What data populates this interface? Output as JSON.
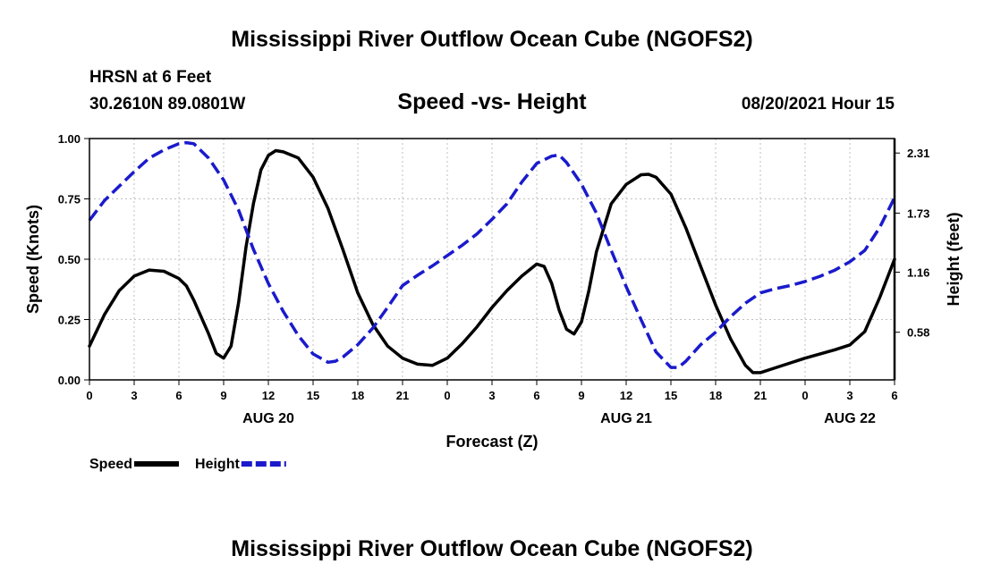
{
  "header": {
    "title": "Mississippi River Outflow Ocean Cube (NGOFS2)",
    "station": "HRSN at 6 Feet",
    "coords": "30.2610N  89.0801W",
    "subtitle": "Speed -vs- Height",
    "datetime": "08/20/2021 Hour 15"
  },
  "footer": {
    "title": "Mississippi River Outflow Ocean Cube (NGOFS2)"
  },
  "chart_data": {
    "type": "line",
    "title": "Speed -vs- Height",
    "xlabel": "Forecast (Z)",
    "ylabel": "Speed (Knots)",
    "y2label": "Height (feet)",
    "x_range_hours": [
      0,
      54
    ],
    "ylim": [
      0,
      1.0
    ],
    "y2lim": [
      0.12,
      2.45
    ],
    "x_ticks": [
      {
        "h": 0,
        "label": "0"
      },
      {
        "h": 3,
        "label": "3"
      },
      {
        "h": 6,
        "label": "6"
      },
      {
        "h": 9,
        "label": "9"
      },
      {
        "h": 12,
        "label": "12"
      },
      {
        "h": 15,
        "label": "15"
      },
      {
        "h": 18,
        "label": "18"
      },
      {
        "h": 21,
        "label": "21"
      },
      {
        "h": 24,
        "label": "0"
      },
      {
        "h": 27,
        "label": "3"
      },
      {
        "h": 30,
        "label": "6"
      },
      {
        "h": 33,
        "label": "9"
      },
      {
        "h": 36,
        "label": "12"
      },
      {
        "h": 39,
        "label": "15"
      },
      {
        "h": 42,
        "label": "18"
      },
      {
        "h": 45,
        "label": "21"
      },
      {
        "h": 48,
        "label": "0"
      },
      {
        "h": 51,
        "label": "3"
      },
      {
        "h": 54,
        "label": "6"
      }
    ],
    "day_labels": [
      {
        "h": 12,
        "label": "AUG 20"
      },
      {
        "h": 36,
        "label": "AUG 21"
      },
      {
        "h": 51,
        "label": "AUG 22"
      }
    ],
    "y_ticks": [
      {
        "v": 0.0,
        "label": "0.00"
      },
      {
        "v": 0.25,
        "label": "0.25"
      },
      {
        "v": 0.5,
        "label": "0.50"
      },
      {
        "v": 0.75,
        "label": "0.75"
      },
      {
        "v": 1.0,
        "label": "1.00"
      }
    ],
    "y2_ticks": [
      {
        "v": 0.58,
        "label": "0.58"
      },
      {
        "v": 1.16,
        "label": "1.16"
      },
      {
        "v": 1.73,
        "label": "1.73"
      },
      {
        "v": 2.31,
        "label": "2.31"
      }
    ],
    "series": [
      {
        "name": "Speed",
        "axis": "left",
        "color": "#000000",
        "dash": "none",
        "points": [
          [
            0,
            0.14
          ],
          [
            1,
            0.27
          ],
          [
            2,
            0.37
          ],
          [
            3,
            0.43
          ],
          [
            4,
            0.455
          ],
          [
            5,
            0.45
          ],
          [
            6,
            0.42
          ],
          [
            6.5,
            0.39
          ],
          [
            7,
            0.33
          ],
          [
            8,
            0.19
          ],
          [
            8.5,
            0.11
          ],
          [
            9,
            0.09
          ],
          [
            9.5,
            0.14
          ],
          [
            10,
            0.32
          ],
          [
            10.5,
            0.55
          ],
          [
            11,
            0.73
          ],
          [
            11.5,
            0.87
          ],
          [
            12,
            0.93
          ],
          [
            12.5,
            0.95
          ],
          [
            13,
            0.945
          ],
          [
            14,
            0.92
          ],
          [
            15,
            0.84
          ],
          [
            16,
            0.71
          ],
          [
            17,
            0.54
          ],
          [
            18,
            0.36
          ],
          [
            19,
            0.23
          ],
          [
            20,
            0.14
          ],
          [
            21,
            0.09
          ],
          [
            22,
            0.065
          ],
          [
            23,
            0.06
          ],
          [
            24,
            0.09
          ],
          [
            25,
            0.15
          ],
          [
            26,
            0.22
          ],
          [
            27,
            0.3
          ],
          [
            28,
            0.37
          ],
          [
            29,
            0.43
          ],
          [
            30,
            0.48
          ],
          [
            30.5,
            0.47
          ],
          [
            31,
            0.4
          ],
          [
            31.5,
            0.29
          ],
          [
            32,
            0.21
          ],
          [
            32.5,
            0.19
          ],
          [
            33,
            0.24
          ],
          [
            33.5,
            0.37
          ],
          [
            34,
            0.53
          ],
          [
            35,
            0.73
          ],
          [
            36,
            0.81
          ],
          [
            37,
            0.85
          ],
          [
            37.5,
            0.852
          ],
          [
            38,
            0.84
          ],
          [
            39,
            0.77
          ],
          [
            40,
            0.63
          ],
          [
            41,
            0.47
          ],
          [
            42,
            0.31
          ],
          [
            43,
            0.17
          ],
          [
            44,
            0.06
          ],
          [
            44.5,
            0.03
          ],
          [
            45,
            0.03
          ],
          [
            46,
            0.05
          ],
          [
            48,
            0.09
          ],
          [
            50,
            0.125
          ],
          [
            51,
            0.145
          ],
          [
            52,
            0.2
          ],
          [
            53,
            0.34
          ],
          [
            54,
            0.5
          ]
        ]
      },
      {
        "name": "Height",
        "axis": "right",
        "color": "#1a1acc",
        "dash": "14,6",
        "points": [
          [
            0,
            1.66
          ],
          [
            1,
            1.85
          ],
          [
            2,
            1.99
          ],
          [
            3,
            2.13
          ],
          [
            4,
            2.26
          ],
          [
            5,
            2.34
          ],
          [
            6,
            2.4
          ],
          [
            6.5,
            2.41
          ],
          [
            7,
            2.4
          ],
          [
            8,
            2.26
          ],
          [
            9,
            2.05
          ],
          [
            10,
            1.76
          ],
          [
            11,
            1.38
          ],
          [
            12,
            1.05
          ],
          [
            13,
            0.78
          ],
          [
            14,
            0.55
          ],
          [
            15,
            0.37
          ],
          [
            16,
            0.29
          ],
          [
            16.5,
            0.3
          ],
          [
            17,
            0.34
          ],
          [
            18,
            0.46
          ],
          [
            19,
            0.62
          ],
          [
            20,
            0.82
          ],
          [
            21,
            1.03
          ],
          [
            22,
            1.13
          ],
          [
            23,
            1.22
          ],
          [
            24,
            1.32
          ],
          [
            25,
            1.42
          ],
          [
            26,
            1.53
          ],
          [
            27,
            1.67
          ],
          [
            28,
            1.82
          ],
          [
            29,
            2.03
          ],
          [
            30,
            2.21
          ],
          [
            31,
            2.28
          ],
          [
            31.5,
            2.29
          ],
          [
            32,
            2.22
          ],
          [
            33,
            2.01
          ],
          [
            34,
            1.73
          ],
          [
            35,
            1.37
          ],
          [
            36,
            1.02
          ],
          [
            37,
            0.7
          ],
          [
            38,
            0.39
          ],
          [
            39,
            0.24
          ],
          [
            39.5,
            0.24
          ],
          [
            40,
            0.3
          ],
          [
            41,
            0.46
          ],
          [
            42,
            0.58
          ],
          [
            43,
            0.73
          ],
          [
            44,
            0.86
          ],
          [
            45,
            0.96
          ],
          [
            46,
            1.0
          ],
          [
            47,
            1.03
          ],
          [
            48,
            1.07
          ],
          [
            49,
            1.12
          ],
          [
            50,
            1.18
          ],
          [
            51,
            1.26
          ],
          [
            52,
            1.37
          ],
          [
            53,
            1.59
          ],
          [
            54,
            1.88
          ]
        ]
      }
    ],
    "legend": [
      {
        "label": "Speed",
        "color": "#000000",
        "dash": "none"
      },
      {
        "label": "Height",
        "color": "#1a1acc",
        "dash": "14,6"
      }
    ],
    "legend_position": "bottom-left",
    "grid": true
  }
}
